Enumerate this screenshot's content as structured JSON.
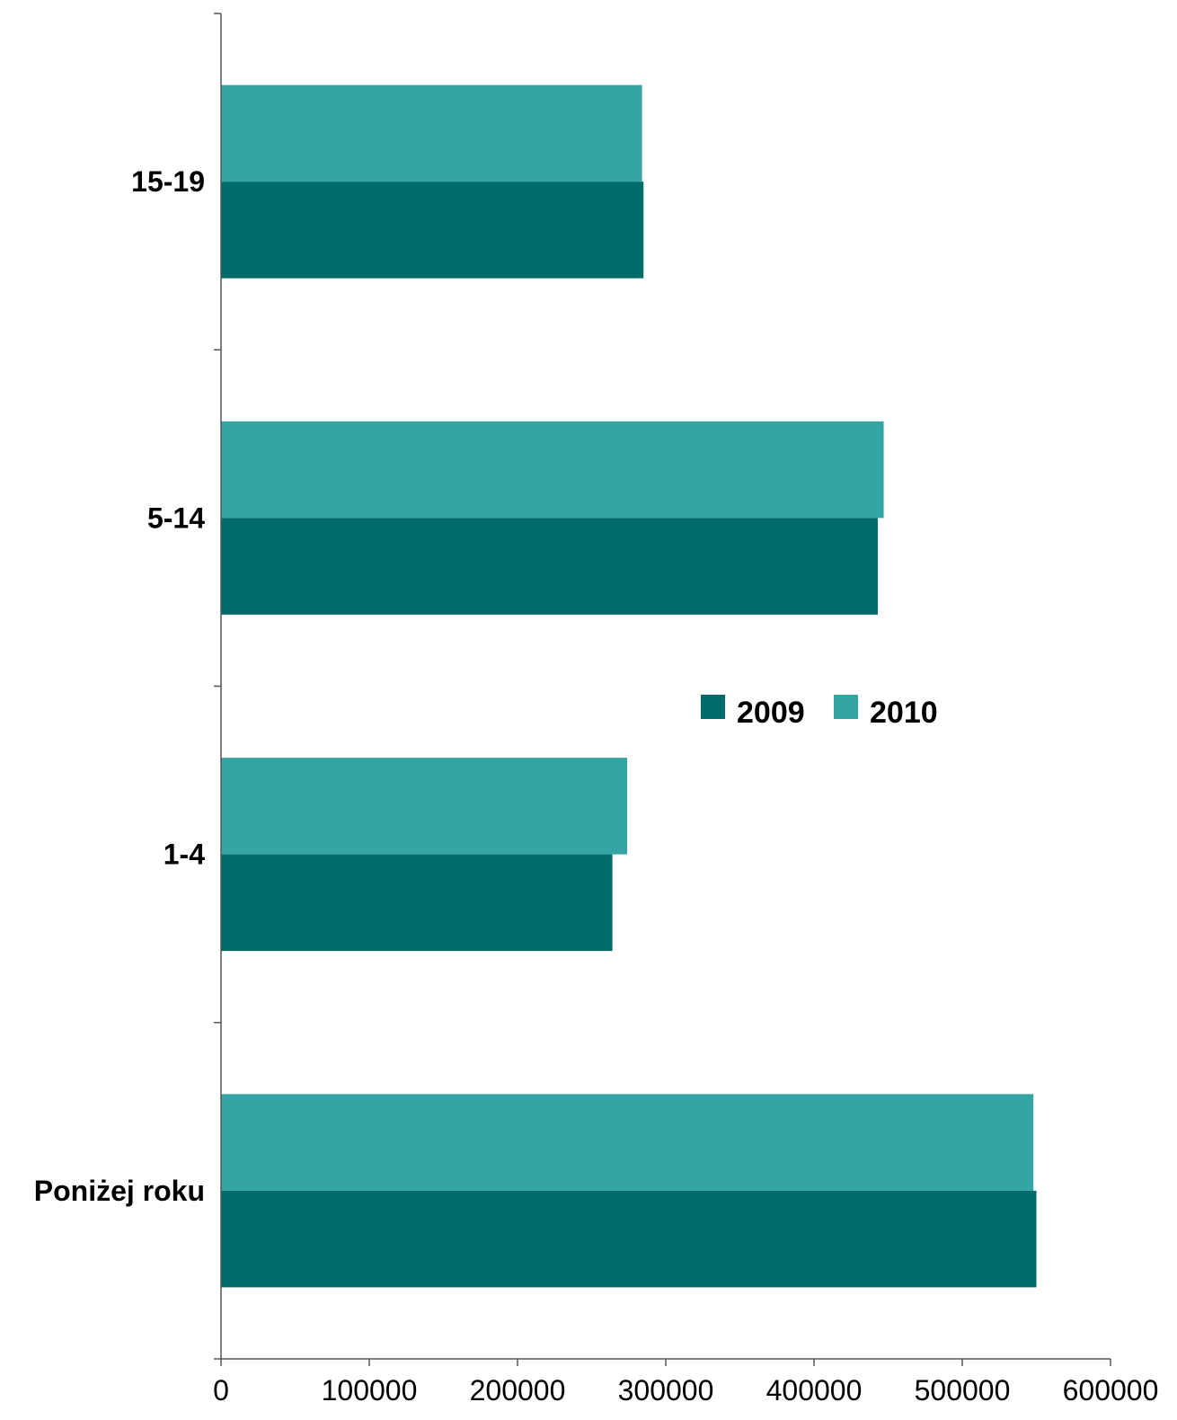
{
  "chart_data": {
    "type": "bar",
    "orientation": "horizontal",
    "categories": [
      "Poniżej roku",
      "1-4",
      "5-14",
      "15-19"
    ],
    "series": [
      {
        "name": "2009",
        "color": "#006b69",
        "values": [
          550000,
          264000,
          443000,
          285000
        ]
      },
      {
        "name": "2010",
        "color": "#35a4a5",
        "values": [
          548000,
          274000,
          447000,
          284000
        ]
      }
    ],
    "xlim": [
      0,
      600000
    ],
    "xticks": [
      "0",
      "100000",
      "200000",
      "300000",
      "400000",
      "500000",
      "600000"
    ],
    "grid": false,
    "legend_position": "right-center"
  }
}
